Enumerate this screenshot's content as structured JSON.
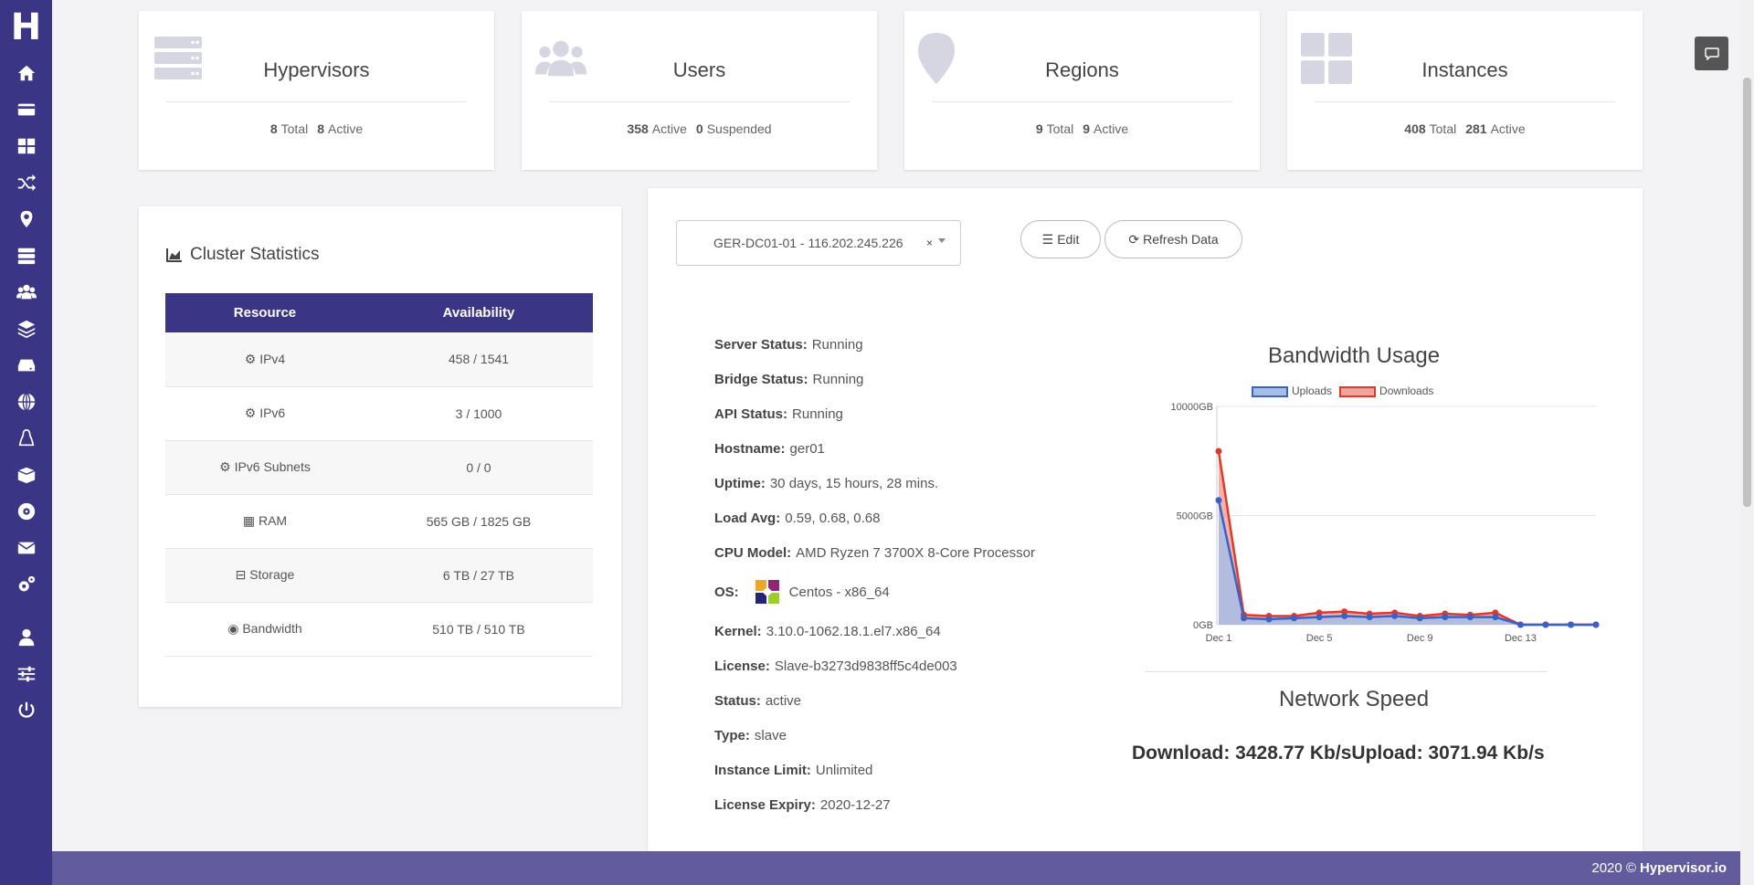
{
  "brand": {
    "logo": "H"
  },
  "sidebar": {
    "items": [
      {
        "icon": "home-icon"
      },
      {
        "icon": "card-icon"
      },
      {
        "icon": "dashboard-icon"
      },
      {
        "icon": "shuffle-icon"
      },
      {
        "icon": "map-marker-icon"
      },
      {
        "icon": "server-icon"
      },
      {
        "icon": "users-icon"
      },
      {
        "icon": "layers-icon"
      },
      {
        "icon": "hdd-icon"
      },
      {
        "icon": "globe-icon"
      },
      {
        "icon": "linux-icon"
      },
      {
        "icon": "box-icon"
      },
      {
        "icon": "disc-icon"
      },
      {
        "icon": "envelope-icon"
      },
      {
        "icon": "cogs-icon"
      },
      {
        "icon": "user-icon"
      },
      {
        "icon": "sliders-icon"
      },
      {
        "icon": "power-icon"
      }
    ]
  },
  "cards": [
    {
      "title": "Hypervisors",
      "n1": "8",
      "l1": "Total",
      "n2": "8",
      "l2": "Active"
    },
    {
      "title": "Users",
      "n1": "358",
      "l1": "Active",
      "n2": "0",
      "l2": "Suspended"
    },
    {
      "title": "Regions",
      "n1": "9",
      "l1": "Total",
      "n2": "9",
      "l2": "Active"
    },
    {
      "title": "Instances",
      "n1": "408",
      "l1": "Total",
      "n2": "281",
      "l2": "Active"
    }
  ],
  "cluster": {
    "title": "Cluster Statistics",
    "headers": [
      "Resource",
      "Availability"
    ],
    "rows": [
      {
        "resource": "IPv4",
        "availability": "458 / 1541"
      },
      {
        "resource": "IPv6",
        "availability": "3 / 1000"
      },
      {
        "resource": "IPv6 Subnets",
        "availability": "0 / 0"
      },
      {
        "resource": "RAM",
        "availability": "565 GB / 1825 GB"
      },
      {
        "resource": "Storage",
        "availability": "6 TB / 27 TB"
      },
      {
        "resource": "Bandwidth",
        "availability": "510 TB / 510 TB"
      }
    ]
  },
  "server": {
    "selected": "GER-DC01-01 - 116.202.245.226",
    "clear": "×",
    "edit_label": "Edit",
    "refresh_label": "Refresh Data",
    "info": [
      {
        "k": "Server Status:",
        "v": "Running"
      },
      {
        "k": "Bridge Status:",
        "v": "Running"
      },
      {
        "k": "API Status:",
        "v": "Running"
      },
      {
        "k": "Hostname:",
        "v": "ger01"
      },
      {
        "k": "Uptime:",
        "v": "30 days, 15 hours, 28 mins."
      },
      {
        "k": "Load Avg:",
        "v": "0.59, 0.68, 0.68"
      },
      {
        "k": "CPU Model:",
        "v": "AMD Ryzen 7 3700X 8-Core Processor"
      },
      {
        "k": "OS:",
        "v": "Centos - x86_64"
      },
      {
        "k": "Kernel:",
        "v": "3.10.0-1062.18.1.el7.x86_64"
      },
      {
        "k": "License:",
        "v": "Slave-b3273d9838ff5c4de003"
      },
      {
        "k": "Status:",
        "v": "active"
      },
      {
        "k": "Type:",
        "v": "slave"
      },
      {
        "k": "Instance Limit:",
        "v": "Unlimited"
      },
      {
        "k": "License Expiry:",
        "v": "2020-12-27"
      }
    ]
  },
  "chart_data": {
    "type": "line",
    "title": "Bandwidth Usage",
    "x": [
      "Dec 1",
      "Dec 2",
      "Dec 3",
      "Dec 4",
      "Dec 5",
      "Dec 6",
      "Dec 7",
      "Dec 8",
      "Dec 9",
      "Dec 10",
      "Dec 11",
      "Dec 12",
      "Dec 13",
      "Dec 14",
      "Dec 15",
      "Dec 16"
    ],
    "x_tick_labels": [
      "Dec 1",
      "Dec 5",
      "Dec 9",
      "Dec 13"
    ],
    "y_tick_labels": [
      "10000GB",
      "5000GB",
      "0GB"
    ],
    "ylim": [
      0,
      10000
    ],
    "grid": true,
    "legend_position": "top",
    "series": [
      {
        "name": "Uploads",
        "color": "#3a62c6",
        "fill": "#a6bde8",
        "values": [
          5700,
          300,
          250,
          300,
          350,
          400,
          350,
          400,
          300,
          350,
          350,
          350,
          0,
          0,
          0,
          0
        ]
      },
      {
        "name": "Downloads",
        "color": "#e0392b",
        "fill": "#f1a49c",
        "values": [
          7950,
          450,
          400,
          400,
          550,
          600,
          500,
          550,
          400,
          500,
          450,
          550,
          0,
          0,
          0,
          0
        ]
      }
    ]
  },
  "network": {
    "title": "Network Speed",
    "text": "Download: 3428.77 Kb/sUpload: 3071.94 Kb/s"
  },
  "footer": {
    "copyright": "2020 ©",
    "brand": "Hypervisor.io"
  }
}
